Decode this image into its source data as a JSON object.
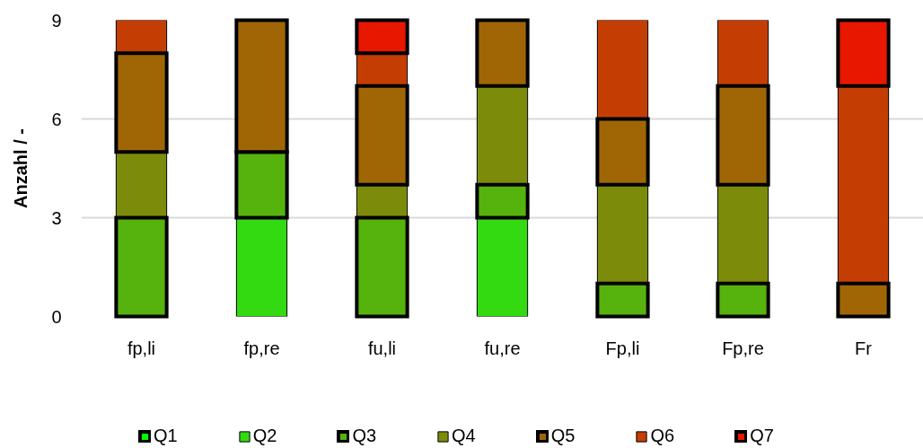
{
  "chart_data": {
    "type": "bar",
    "stacked": true,
    "ylabel": "Anzahl / -",
    "categories": [
      "fp,li",
      "fp,re",
      "fu,li",
      "fu,re",
      "Fp,li",
      "Fp,re",
      "Fr"
    ],
    "series": [
      {
        "name": "Q1",
        "color": "#00ff00",
        "values": [
          0,
          0,
          0,
          0,
          0,
          0,
          0
        ]
      },
      {
        "name": "Q2",
        "color": "#33d911",
        "values": [
          0,
          3,
          0,
          3,
          0,
          0,
          0
        ]
      },
      {
        "name": "Q3",
        "color": "#56b20c",
        "values": [
          3,
          2,
          3,
          1,
          1,
          1,
          0
        ]
      },
      {
        "name": "Q4",
        "color": "#7c8c0a",
        "values": [
          2,
          0,
          1,
          3,
          3,
          3,
          0
        ]
      },
      {
        "name": "Q5",
        "color": "#a06605",
        "values": [
          3,
          4,
          3,
          2,
          2,
          3,
          1
        ]
      },
      {
        "name": "Q6",
        "color": "#c43e03",
        "values": [
          1,
          0,
          1,
          0,
          3,
          2,
          6
        ]
      },
      {
        "name": "Q7",
        "color": "#e81800",
        "values": [
          0,
          0,
          1,
          0,
          0,
          0,
          2
        ]
      }
    ],
    "ylim": [
      0,
      9
    ],
    "yticks": [
      0,
      3,
      6,
      9
    ],
    "grid": "y",
    "legend": "bottom"
  }
}
